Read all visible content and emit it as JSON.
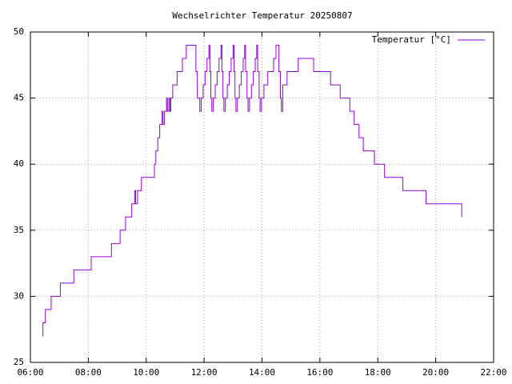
{
  "chart_data": {
    "type": "line",
    "line_style": "steps",
    "title": "Wechselrichter Temperatur 20250807",
    "xlim": [
      "06:00",
      "22:00"
    ],
    "xticks": [
      "06:00",
      "08:00",
      "10:00",
      "12:00",
      "14:00",
      "16:00",
      "18:00",
      "20:00",
      "22:00"
    ],
    "ylim": [
      25,
      50
    ],
    "yticks": [
      25,
      30,
      35,
      40,
      45,
      50
    ],
    "grid": true,
    "legend": "top-right",
    "x": [
      "06:25",
      "06:26",
      "06:31",
      "06:43",
      "07:02",
      "07:30",
      "08:06",
      "08:48",
      "09:06",
      "09:17",
      "09:30",
      "09:36",
      "09:38",
      "09:42",
      "09:50",
      "10:17",
      "10:20",
      "10:24",
      "10:28",
      "10:33",
      "10:35",
      "10:38",
      "10:42",
      "10:44",
      "10:47",
      "10:49",
      "10:51",
      "10:55",
      "11:04",
      "11:15",
      "11:23",
      "11:43",
      "11:46",
      "11:51",
      "11:54",
      "11:58",
      "12:02",
      "12:06",
      "12:10",
      "12:12",
      "12:14",
      "12:16",
      "12:19",
      "12:23",
      "12:27",
      "12:31",
      "12:35",
      "12:37",
      "12:39",
      "12:41",
      "12:44",
      "12:48",
      "12:52",
      "12:56",
      "13:00",
      "13:02",
      "13:04",
      "13:06",
      "13:09",
      "13:13",
      "13:17",
      "13:21",
      "13:24",
      "13:26",
      "13:29",
      "13:31",
      "13:34",
      "13:38",
      "13:42",
      "13:46",
      "13:49",
      "13:51",
      "13:54",
      "13:56",
      "13:59",
      "14:04",
      "14:12",
      "14:24",
      "14:29",
      "14:35",
      "14:38",
      "14:40",
      "14:43",
      "14:52",
      "15:15",
      "15:47",
      "16:22",
      "16:42",
      "17:02",
      "17:11",
      "17:21",
      "17:30",
      "17:53",
      "18:14",
      "18:52",
      "19:40",
      "20:54"
    ],
    "series": [
      {
        "name": "Temperatur [°C]",
        "color": "#9400d3",
        "values": [
          27,
          28,
          29,
          30,
          31,
          32,
          33,
          34,
          35,
          36,
          37,
          38,
          37,
          38,
          39,
          40,
          41,
          42,
          43,
          44,
          43,
          44,
          45,
          44,
          45,
          44,
          45,
          46,
          47,
          48,
          49,
          47,
          45,
          44,
          45,
          46,
          47,
          48,
          49,
          47,
          45,
          44,
          45,
          46,
          47,
          48,
          49,
          47,
          45,
          44,
          45,
          46,
          47,
          48,
          49,
          47,
          45,
          44,
          45,
          46,
          47,
          48,
          49,
          47,
          45,
          44,
          45,
          46,
          47,
          48,
          49,
          47,
          45,
          44,
          45,
          46,
          47,
          48,
          49,
          47,
          45,
          44,
          46,
          47,
          48,
          47,
          46,
          45,
          44,
          43,
          42,
          41,
          40,
          39,
          38,
          37,
          36
        ]
      }
    ]
  }
}
